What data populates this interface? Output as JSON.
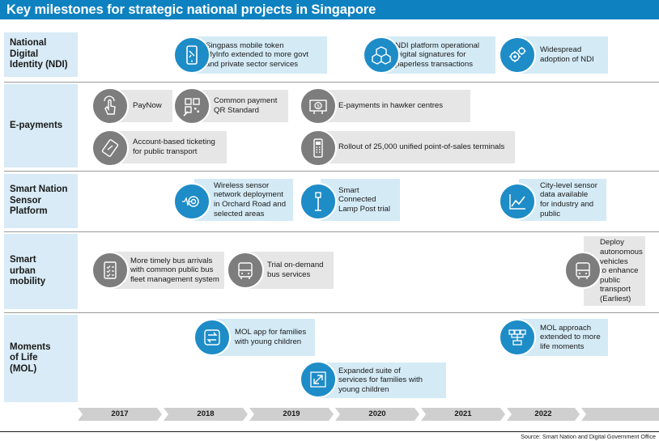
{
  "title": "Key milestones for strategic national projects in Singapore",
  "rows": [
    {
      "label": "National\nDigital\nIdentity (NDI)"
    },
    {
      "label": "E-payments"
    },
    {
      "label": "Smart Nation\nSensor\nPlatform"
    },
    {
      "label": "Smart\nurban\nmobility"
    },
    {
      "label": "Moments\nof Life\n(MOL)"
    }
  ],
  "milestones": {
    "ndi_2019": [
      "Singpass mobile token",
      "MyInfo extended to more govt\nand private sector services"
    ],
    "ndi_2021": [
      "NDI platform operational",
      "Digital signatures for\npaperless transactions"
    ],
    "ndi_2022": "Widespread\nadoption of NDI",
    "pay_paynow": "PayNow",
    "pay_qr": "Common payment\nQR Standard",
    "pay_hawker": "E-payments in hawker centres",
    "pay_ticketing": "Account-based ticketing\nfor public transport",
    "pay_pos": "Rollout of 25,000 unified point-of-sales terminals",
    "sensor_wireless": "Wireless sensor\nnetwork deployment\nin Orchard Road and\nselected areas",
    "sensor_lamp": "Smart\nConnected\nLamp Post trial",
    "sensor_city": "City-level sensor\ndata available\nfor industry and\npublic",
    "mob_bus": "More timely bus arrivals\nwith common public bus\nfleet management system",
    "mob_ondemand": "Trial on-demand\nbus services",
    "mob_autonomous": "Deploy\nautonomous\nvehicles\nto enhance\npublic\ntransport\n(Earliest)",
    "mol_app": "MOL app for families\nwith young children",
    "mol_expanded": "Expanded suite of\nservices for families with\nyoung children",
    "mol_approach": "MOL approach\nextended to more\nlife moments"
  },
  "years": [
    "2017",
    "2018",
    "2019",
    "2020",
    "2021",
    "2022"
  ],
  "source": "Source: Smart Nation and Digital Government Office",
  "colors": {
    "accent": "#0e82c0",
    "icon_blue": "#1d8cc7",
    "icon_grey": "#7d7d7d",
    "box_blue": "#d4ebf6",
    "box_grey": "#e6e6e6"
  }
}
